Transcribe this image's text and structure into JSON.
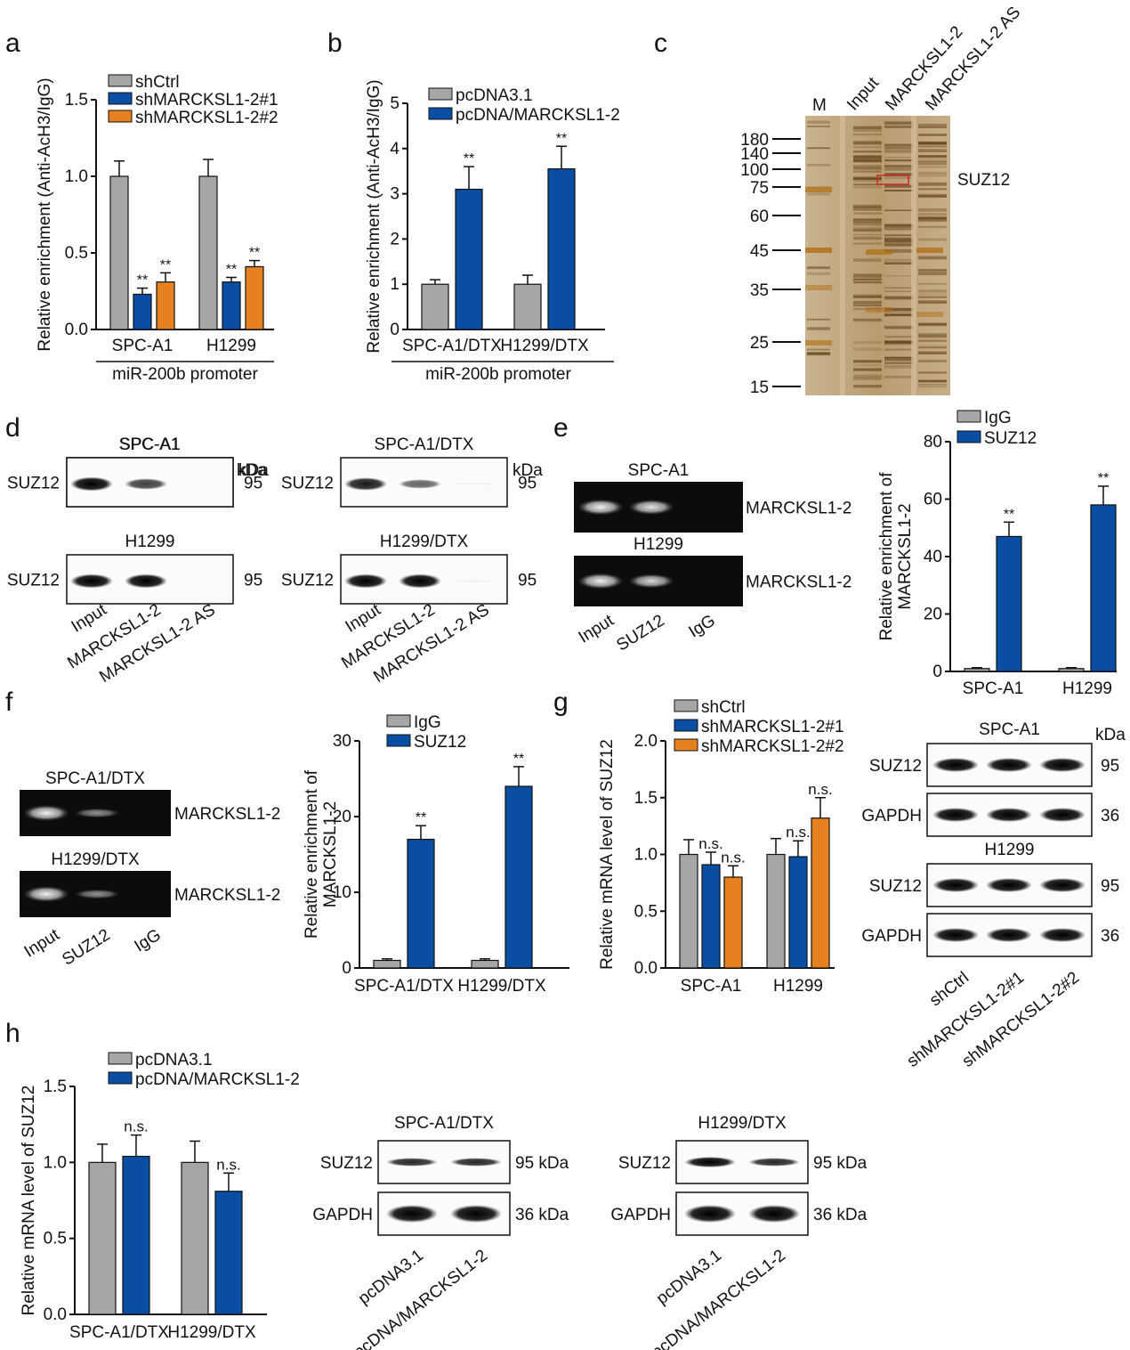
{
  "colors": {
    "gray": "#a6a6a7",
    "blue": "#0a4ea3",
    "orange": "#e5811f",
    "axis": "#111111",
    "gel_bg": "#0c0c0c",
    "silver_bg": "#c4ab86"
  },
  "panels": {
    "a": {
      "label": "a",
      "group_label": "miR-200b promoter",
      "sig": "**"
    },
    "b": {
      "label": "b",
      "group_label": "miR-200b promoter",
      "sig": "**"
    },
    "c": {
      "label": "c",
      "lanes": [
        "M",
        "Input",
        "MARCKSL1-2",
        "MARCKSL1-2 AS"
      ],
      "markers": [
        "180",
        "140",
        "100",
        "75",
        "60",
        "45",
        "35",
        "25",
        "15"
      ],
      "band_label": "SUZ12"
    },
    "d": {
      "label": "d",
      "kda": "kDa",
      "row_label": "SUZ12",
      "size": "95",
      "blots": [
        "SPC-A1",
        "H1299",
        "SPC-A1/DTX",
        "H1299/DTX"
      ],
      "lanes": [
        "Input",
        "MARCKSL1-2",
        "MARCKSL1-2 AS"
      ]
    },
    "e": {
      "label": "e",
      "gels": [
        "SPC-A1",
        "H1299"
      ],
      "gel_side": "MARCKSL1-2",
      "lanes": [
        "Input",
        "SUZ12",
        "IgG"
      ],
      "sig": "**"
    },
    "f": {
      "label": "f",
      "gels": [
        "SPC-A1/DTX",
        "H1299/DTX"
      ],
      "gel_side": "MARCKSL1-2",
      "lanes": [
        "Input",
        "SUZ12",
        "IgG"
      ],
      "sig": "**"
    },
    "g": {
      "label": "g",
      "sig": "n.s.",
      "blots": [
        "SPC-A1",
        "H1299"
      ],
      "rows": [
        "SUZ12",
        "GAPDH"
      ],
      "sizes": [
        "95",
        "36"
      ],
      "kda": "kDa",
      "lanes": [
        "shCtrl",
        "shMARCKSL1-2#1",
        "shMARCKSL1-2#2"
      ]
    },
    "h": {
      "label": "h",
      "sig": "n.s.",
      "blots": [
        "SPC-A1/DTX",
        "H1299/DTX"
      ],
      "rows": [
        "SUZ12",
        "GAPDH"
      ],
      "sizes": [
        "95 kDa",
        "36 kDa"
      ],
      "lanes": [
        "pcDNA3.1",
        "pcDNA/MARCKSL1-2"
      ]
    }
  },
  "chart_data": [
    {
      "panel": "a",
      "type": "bar",
      "categories": [
        "SPC-A1",
        "H1299"
      ],
      "series": [
        {
          "name": "shCtrl",
          "values": [
            1.0,
            1.0
          ],
          "errors": [
            0.1,
            0.11
          ]
        },
        {
          "name": "shMARCKSL1-2#1",
          "values": [
            0.23,
            0.31
          ],
          "errors": [
            0.04,
            0.03
          ]
        },
        {
          "name": "shMARCKSL1-2#2",
          "values": [
            0.31,
            0.41
          ],
          "errors": [
            0.06,
            0.04
          ]
        }
      ],
      "ylabel": "Relative enrichment (Anti-AcH3/IgG)",
      "ylim": [
        0,
        1.5
      ],
      "yticks": [
        "0.0",
        "0.5",
        "1.0",
        "1.5"
      ],
      "sig": [
        [
          null,
          null
        ],
        [
          "**",
          "**"
        ],
        [
          "**",
          "**"
        ]
      ]
    },
    {
      "panel": "b",
      "type": "bar",
      "categories": [
        "SPC-A1/DTX",
        "H1299/DTX"
      ],
      "series": [
        {
          "name": "pcDNA3.1",
          "values": [
            1.0,
            1.0
          ],
          "errors": [
            0.1,
            0.2
          ]
        },
        {
          "name": "pcDNA/MARCKSL1-2",
          "values": [
            3.1,
            3.55
          ],
          "errors": [
            0.5,
            0.5
          ]
        }
      ],
      "ylabel": "Relative enrichment (Anti-AcH3/IgG)",
      "ylim": [
        0,
        5
      ],
      "yticks": [
        "0",
        "1",
        "2",
        "3",
        "4",
        "5"
      ],
      "sig": [
        [
          null,
          null
        ],
        [
          "**",
          "**"
        ]
      ]
    },
    {
      "panel": "e",
      "type": "bar",
      "categories": [
        "SPC-A1",
        "H1299"
      ],
      "series": [
        {
          "name": "IgG",
          "values": [
            1.0,
            1.0
          ],
          "errors": [
            0.3,
            0.3
          ]
        },
        {
          "name": "SUZ12",
          "values": [
            47,
            58
          ],
          "errors": [
            5,
            6.5
          ]
        }
      ],
      "ylabel": "Relative enrichment of MARCKSL1-2",
      "ylim": [
        0,
        80
      ],
      "yticks": [
        "0",
        "20",
        "40",
        "60",
        "80"
      ],
      "sig": [
        [
          null,
          null
        ],
        [
          "**",
          "**"
        ]
      ]
    },
    {
      "panel": "f",
      "type": "bar",
      "categories": [
        "SPC-A1/DTX",
        "H1299/DTX"
      ],
      "series": [
        {
          "name": "IgG",
          "values": [
            1.0,
            1.0
          ],
          "errors": [
            0.2,
            0.2
          ]
        },
        {
          "name": "SUZ12",
          "values": [
            17,
            24
          ],
          "errors": [
            1.8,
            2.6
          ]
        }
      ],
      "ylabel": "Relative enrichment of MARCKSL1-2",
      "ylim": [
        0,
        30
      ],
      "yticks": [
        "0",
        "10",
        "20",
        "30"
      ],
      "sig": [
        [
          null,
          null
        ],
        [
          "**",
          "**"
        ]
      ]
    },
    {
      "panel": "g",
      "type": "bar",
      "categories": [
        "SPC-A1",
        "H1299"
      ],
      "series": [
        {
          "name": "shCtrl",
          "values": [
            1.0,
            1.0
          ],
          "errors": [
            0.13,
            0.14
          ]
        },
        {
          "name": "shMARCKSL1-2#1",
          "values": [
            0.91,
            0.98
          ],
          "errors": [
            0.11,
            0.14
          ]
        },
        {
          "name": "shMARCKSL1-2#2",
          "values": [
            0.8,
            1.32
          ],
          "errors": [
            0.1,
            0.18
          ]
        }
      ],
      "ylabel": "Relative mRNA level of SUZ12",
      "ylim": [
        0,
        2
      ],
      "yticks": [
        "0.0",
        "0.5",
        "1.0",
        "1.5",
        "2.0"
      ],
      "sig": [
        [
          null,
          null
        ],
        [
          "n.s.",
          "n.s."
        ],
        [
          "n.s.",
          "n.s."
        ]
      ]
    },
    {
      "panel": "h",
      "type": "bar",
      "categories": [
        "SPC-A1/DTX",
        "H1299/DTX"
      ],
      "series": [
        {
          "name": "pcDNA3.1",
          "values": [
            1.0,
            1.0
          ],
          "errors": [
            0.12,
            0.14
          ]
        },
        {
          "name": "pcDNA/MARCKSL1-2",
          "values": [
            1.04,
            0.81
          ],
          "errors": [
            0.14,
            0.12
          ]
        }
      ],
      "ylabel": "Relative mRNA level of SUZ12",
      "ylim": [
        0,
        1.5
      ],
      "yticks": [
        "0.0",
        "0.5",
        "1.0",
        "1.5"
      ],
      "sig": [
        [
          null,
          null
        ],
        [
          "n.s.",
          "n.s."
        ]
      ]
    }
  ]
}
